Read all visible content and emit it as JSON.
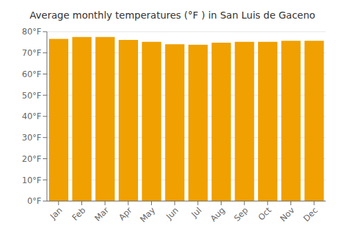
{
  "chart_data": {
    "type": "bar",
    "title": "Average monthly temperatures (°F ) in San Luis de Gaceno",
    "categories": [
      "Jan",
      "Feb",
      "Mar",
      "Apr",
      "May",
      "Jun",
      "Jul",
      "Aug",
      "Sep",
      "Oct",
      "Nov",
      "Dec"
    ],
    "values": [
      76.6,
      77.5,
      77.5,
      76.1,
      75.2,
      74.1,
      73.8,
      74.8,
      75.2,
      75.2,
      75.7,
      75.7
    ],
    "color": "#F0A000",
    "ylim": [
      0,
      80
    ],
    "yticks": [
      {
        "value": 0,
        "label": "0°F"
      },
      {
        "value": 10,
        "label": "10°F"
      },
      {
        "value": 20,
        "label": "20°F"
      },
      {
        "value": 30,
        "label": "30°F"
      },
      {
        "value": 40,
        "label": "40°F"
      },
      {
        "value": 50,
        "label": "50°F"
      },
      {
        "value": 60,
        "label": "60°F"
      },
      {
        "value": 70,
        "label": "70°F"
      },
      {
        "value": 80,
        "label": "80°F"
      }
    ],
    "grid": true
  }
}
